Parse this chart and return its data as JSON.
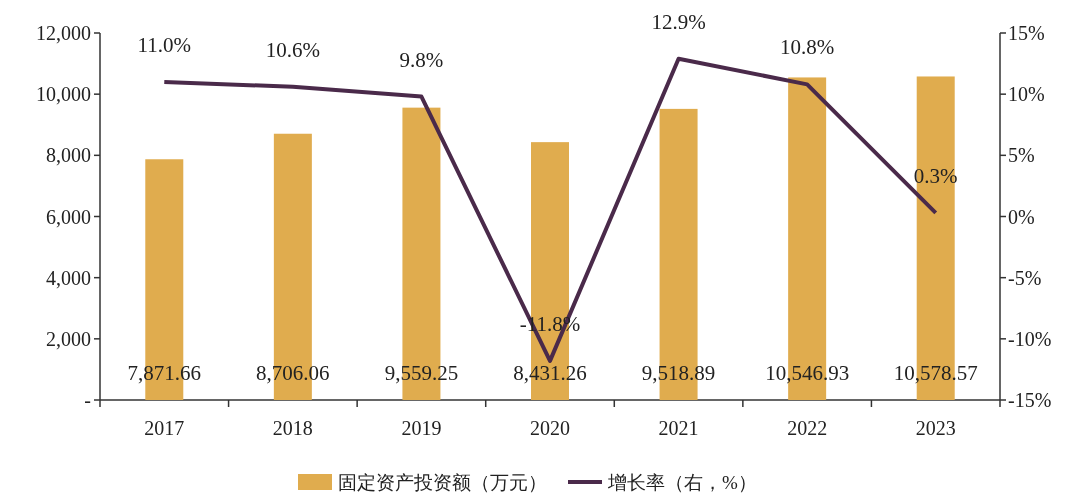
{
  "chart_data": {
    "type": "bar",
    "categories": [
      "2017",
      "2018",
      "2019",
      "2020",
      "2021",
      "2022",
      "2023"
    ],
    "series": [
      {
        "name": "固定资产投资额（万元）",
        "color": "#e0ac4e",
        "values": [
          7871.66,
          8706.06,
          9559.25,
          8431.26,
          9518.89,
          10546.93,
          10578.57
        ],
        "value_labels": [
          "7,871.66",
          "8,706.06",
          "9,559.25",
          "8,431.26",
          "9,518.89",
          "10,546.93",
          "10,578.57"
        ]
      },
      {
        "name": "增长率（右，%）",
        "type": "line",
        "axis": "y2",
        "color": "#4a2a4a",
        "values": [
          11.0,
          10.6,
          9.8,
          -11.8,
          12.9,
          10.8,
          0.3
        ],
        "value_labels": [
          "11.0%",
          "10.6%",
          "9.8%",
          "-11.8%",
          "12.9%",
          "10.8%",
          "0.3%"
        ]
      }
    ],
    "ylim": [
      0,
      12000
    ],
    "yticks": [
      {
        "value": 0,
        "label": "-"
      },
      {
        "value": 2000,
        "label": "2,000"
      },
      {
        "value": 4000,
        "label": "4,000"
      },
      {
        "value": 6000,
        "label": "6,000"
      },
      {
        "value": 8000,
        "label": "8,000"
      },
      {
        "value": 10000,
        "label": "10,000"
      },
      {
        "value": 12000,
        "label": "12,000"
      }
    ],
    "y2lim": [
      -15,
      15
    ],
    "y2ticks": [
      {
        "value": -15,
        "label": "-15%"
      },
      {
        "value": -10,
        "label": "-10%"
      },
      {
        "value": -5,
        "label": "-5%"
      },
      {
        "value": 0,
        "label": "0%"
      },
      {
        "value": 5,
        "label": "5%"
      },
      {
        "value": 10,
        "label": "10%"
      },
      {
        "value": 15,
        "label": "15%"
      }
    ],
    "legend": "bottom"
  }
}
